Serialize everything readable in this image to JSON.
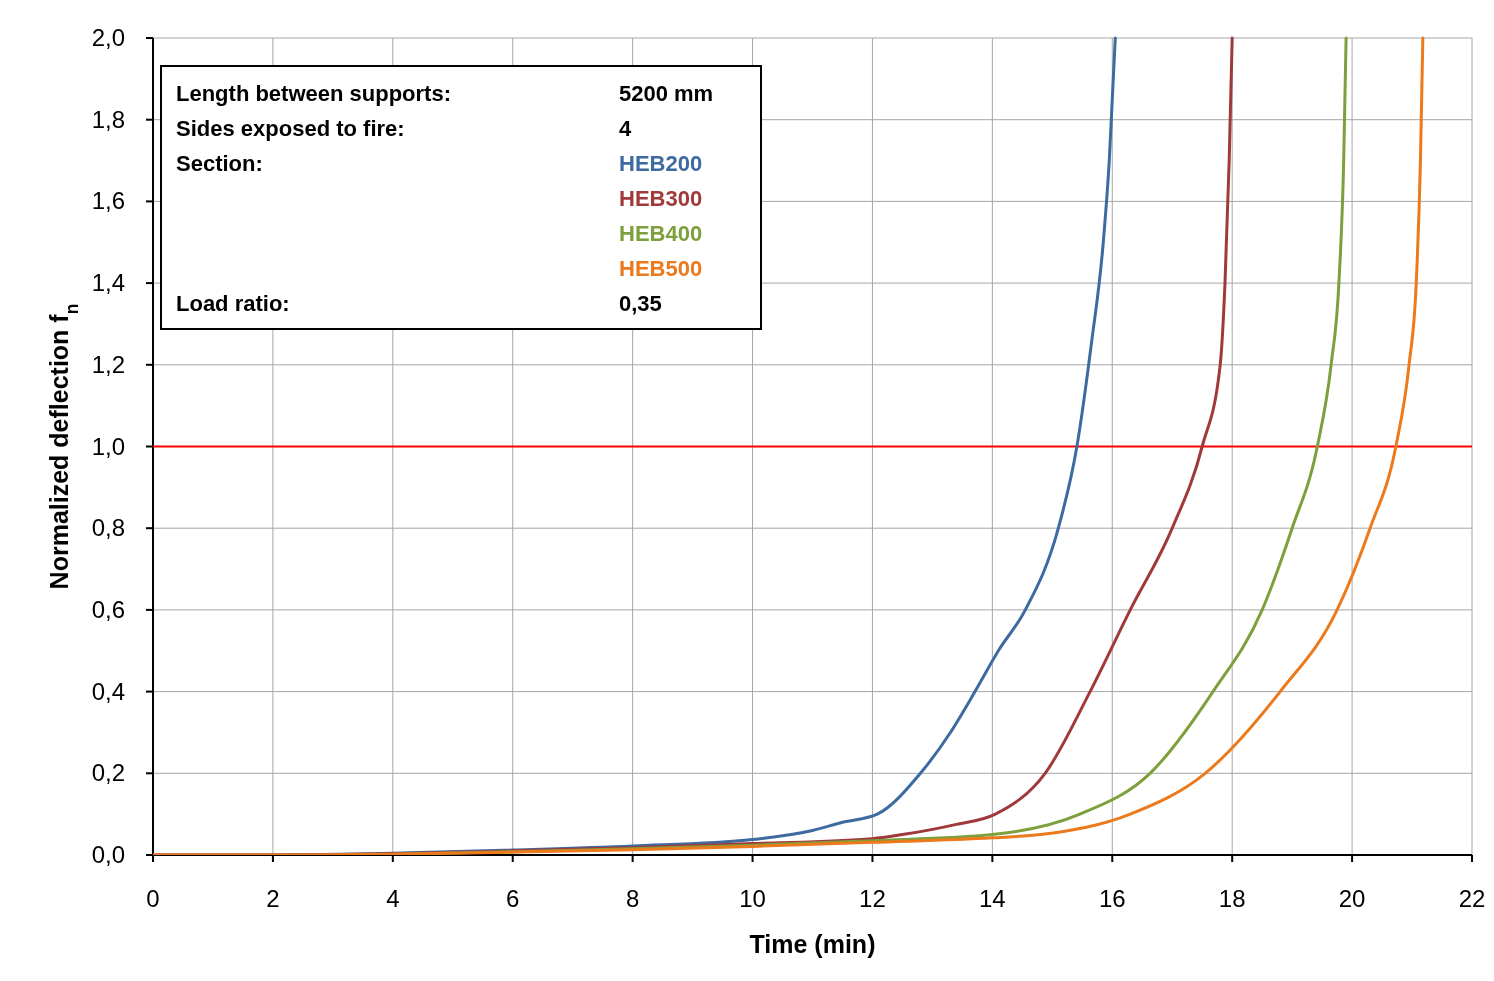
{
  "chart_data": {
    "type": "line",
    "xlabel": "Time (min)",
    "ylabel": "Normalized deflection f$_{n}$",
    "xlim": [
      0,
      22
    ],
    "xticks": [
      0,
      2,
      4,
      6,
      8,
      10,
      12,
      14,
      16,
      18,
      20,
      22
    ],
    "ylim": [
      0,
      2
    ],
    "yticks": [
      {
        "value": 0,
        "label": "0,0"
      },
      {
        "value": 0.2,
        "label": "0,2"
      },
      {
        "value": 0.4,
        "label": "0,4"
      },
      {
        "value": 0.6,
        "label": "0,6"
      },
      {
        "value": 0.8,
        "label": "0,8"
      },
      {
        "value": 1,
        "label": "1,0"
      },
      {
        "value": 1.2,
        "label": "1,2"
      },
      {
        "value": 1.4,
        "label": "1,4"
      },
      {
        "value": 1.6,
        "label": "1,6"
      },
      {
        "value": 1.8,
        "label": "1,8"
      },
      {
        "value": 2,
        "label": "2,0"
      }
    ],
    "grid": true,
    "legend": "top left",
    "marker": "none",
    "line_style": "solid",
    "annotations": [
      "Length between supports:",
      "5200 mm",
      "Sides exposed to fire:",
      "4",
      "Section:",
      "Load ratio:",
      "0,35"
    ],
    "ref_lines": [
      {
        "axis": "y",
        "value": 1,
        "color": "#ff0000"
      }
    ],
    "series": [
      {
        "name": "HEB200",
        "color": "#3d6aa0",
        "x": [
          0,
          2,
          4,
          6,
          8,
          10,
          11,
          11.5,
          12.08,
          12.8,
          13.3,
          13.71,
          14.1,
          14.55,
          15.1,
          15.41,
          15.65,
          15.85,
          15.95,
          16.05
        ],
        "values": [
          0,
          0,
          0.004,
          0.012,
          0.022,
          0.038,
          0.06,
          0.08,
          0.1,
          0.2,
          0.3,
          0.4,
          0.5,
          0.6,
          0.8,
          1.0,
          1.25,
          1.5,
          1.7,
          2.0
        ]
      },
      {
        "name": "HEB300",
        "color": "#a0393a",
        "x": [
          0,
          2,
          4,
          6,
          8,
          10,
          12,
          12.5,
          13.4,
          14.05,
          14.88,
          15.63,
          16.3,
          17.0,
          17.5,
          17.8,
          17.88,
          17.95,
          18.0
        ],
        "values": [
          0,
          0,
          0.003,
          0.01,
          0.018,
          0.028,
          0.04,
          0.05,
          0.075,
          0.1,
          0.2,
          0.4,
          0.6,
          0.8,
          1.0,
          1.2,
          1.4,
          1.7,
          2.0
        ]
      },
      {
        "name": "HEB400",
        "color": "#7d9f3c",
        "x": [
          4,
          6,
          8,
          10,
          12,
          14,
          15.46,
          16.63,
          17.68,
          18.5,
          19.0,
          19.42,
          19.65,
          19.78,
          19.86,
          19.9
        ],
        "values": [
          0.002,
          0.008,
          0.015,
          0.024,
          0.035,
          0.05,
          0.1,
          0.2,
          0.4,
          0.6,
          0.8,
          1.0,
          1.2,
          1.4,
          1.7,
          2.0
        ]
      },
      {
        "name": "HEB500",
        "color": "#ec7a1c",
        "x": [
          0,
          2,
          4,
          6,
          8,
          10,
          12,
          14,
          14.8,
          16.3,
          17.55,
          18.8,
          19.75,
          20.3,
          20.73,
          20.95,
          21.07,
          21.14,
          21.18
        ],
        "values": [
          0,
          0,
          0.002,
          0.007,
          0.013,
          0.021,
          0.031,
          0.042,
          0.05,
          0.1,
          0.2,
          0.4,
          0.6,
          0.8,
          1.0,
          1.2,
          1.4,
          1.7,
          2.0
        ]
      }
    ]
  }
}
